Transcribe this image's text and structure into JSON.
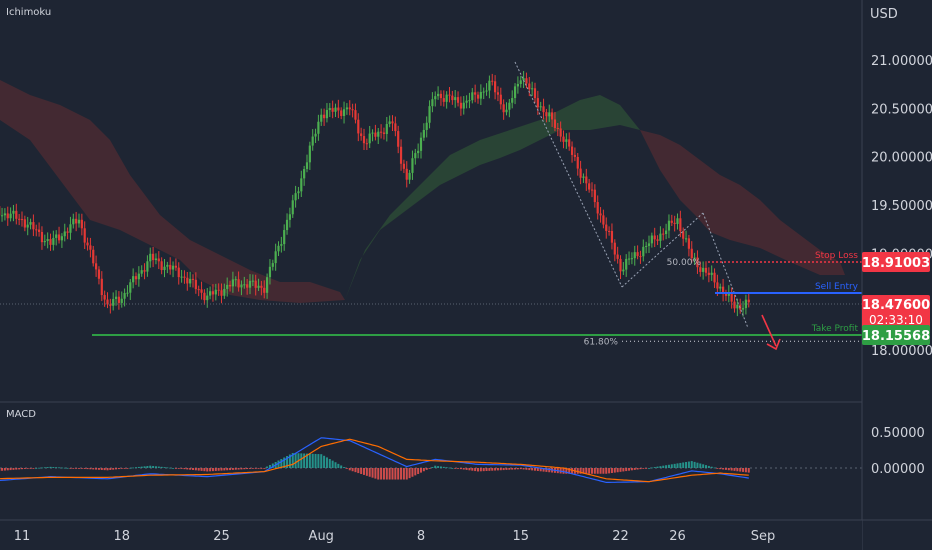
{
  "indicators": {
    "main": "Ichimoku",
    "sub": "MACD"
  },
  "currency": "USD",
  "colors": {
    "background": "#1e2533",
    "up": "#4caf50",
    "down": "#e53935",
    "stop": "#f23645",
    "entry": "#2962ff",
    "target": "#2e9e44",
    "cloud_bull": "#2c4a36",
    "cloud_bear": "#4a2a33",
    "macd": "#2962ff",
    "signal": "#ff6d00",
    "hist_up": "#26a69a",
    "hist_down": "#ef5350"
  },
  "chart_data": [
    {
      "type": "candlestick",
      "title": "",
      "y_unit": "USD",
      "ylim": [
        17.8,
        21.3
      ],
      "y_ticks": [
        {
          "value": 21.0,
          "label": "21.00000"
        },
        {
          "value": 20.5,
          "label": "20.50000"
        },
        {
          "value": 20.0,
          "label": "20.00000"
        },
        {
          "value": 19.5,
          "label": "19.50000"
        },
        {
          "value": 19.0,
          "label": "19.00000"
        },
        {
          "value": 18.0,
          "label": "18.00000"
        }
      ],
      "x_ticks": [
        {
          "label": "11",
          "date": "2022-07-11"
        },
        {
          "label": "18",
          "date": "2022-07-18"
        },
        {
          "label": "25",
          "date": "2022-07-25"
        },
        {
          "label": "Aug",
          "date": "2022-08-01"
        },
        {
          "label": "8",
          "date": "2022-08-08"
        },
        {
          "label": "15",
          "date": "2022-08-15"
        },
        {
          "label": "22",
          "date": "2022-08-22"
        },
        {
          "label": "26",
          "date": "2022-08-26"
        },
        {
          "label": "Sep",
          "date": "2022-09-01"
        }
      ],
      "price_path": [
        {
          "date": "2022-07-09",
          "price": 19.45
        },
        {
          "date": "2022-07-11",
          "price": 19.35
        },
        {
          "date": "2022-07-13",
          "price": 19.1
        },
        {
          "date": "2022-07-15",
          "price": 19.35
        },
        {
          "date": "2022-07-17",
          "price": 18.45
        },
        {
          "date": "2022-07-18",
          "price": 18.55
        },
        {
          "date": "2022-07-20",
          "price": 18.95
        },
        {
          "date": "2022-07-22",
          "price": 18.8
        },
        {
          "date": "2022-07-24",
          "price": 18.55
        },
        {
          "date": "2022-07-26",
          "price": 18.7
        },
        {
          "date": "2022-07-28",
          "price": 18.65
        },
        {
          "date": "2022-07-30",
          "price": 19.5
        },
        {
          "date": "2022-08-01",
          "price": 20.45
        },
        {
          "date": "2022-08-03",
          "price": 20.5
        },
        {
          "date": "2022-08-04",
          "price": 20.15
        },
        {
          "date": "2022-08-06",
          "price": 20.35
        },
        {
          "date": "2022-08-07",
          "price": 19.75
        },
        {
          "date": "2022-08-09",
          "price": 20.65
        },
        {
          "date": "2022-08-11",
          "price": 20.55
        },
        {
          "date": "2022-08-13",
          "price": 20.75
        },
        {
          "date": "2022-08-14",
          "price": 20.45
        },
        {
          "date": "2022-08-15",
          "price": 20.85
        },
        {
          "date": "2022-08-16",
          "price": 20.6
        },
        {
          "date": "2022-08-18",
          "price": 20.2
        },
        {
          "date": "2022-08-20",
          "price": 19.6
        },
        {
          "date": "2022-08-21",
          "price": 19.25
        },
        {
          "date": "2022-08-22",
          "price": 18.85
        },
        {
          "date": "2022-08-24",
          "price": 19.1
        },
        {
          "date": "2022-08-26",
          "price": 19.35
        },
        {
          "date": "2022-08-27",
          "price": 18.95
        },
        {
          "date": "2022-08-29",
          "price": 18.65
        },
        {
          "date": "2022-08-30",
          "price": 18.45
        },
        {
          "date": "2022-08-31",
          "price": 18.48
        }
      ],
      "levels": [
        {
          "name": "Stop Loss",
          "value": 18.91003,
          "label": "18.91003"
        },
        {
          "name": "Sell Entry",
          "value": 18.59,
          "label": ""
        },
        {
          "name": "Take Profit",
          "value": 18.15568,
          "label": "18.15568"
        }
      ],
      "current_price": {
        "value": 18.476,
        "label": "18.47600",
        "countdown": "02:33:10"
      },
      "fibonacci": [
        {
          "label": "50.00%",
          "value": 18.91003
        },
        {
          "label": "61.80%",
          "value": 18.09
        }
      ],
      "annotations": [
        "Stop Loss",
        "Sell Entry",
        "Take Profit",
        "50.00%",
        "61.80%"
      ]
    },
    {
      "type": "line",
      "title": "MACD",
      "ylim": [
        -0.2,
        0.5
      ],
      "y_ticks": [
        {
          "value": 0.5,
          "label": "0.50000"
        },
        {
          "value": 0.0,
          "label": "0.00000"
        }
      ],
      "series": [
        {
          "values": [
            {
              "date": "2022-07-09",
              "value": -0.18
            },
            {
              "date": "2022-07-13",
              "value": -0.12
            },
            {
              "date": "2022-07-17",
              "value": -0.15
            },
            {
              "date": "2022-07-20",
              "value": -0.08
            },
            {
              "date": "2022-07-24",
              "value": -0.12
            },
            {
              "date": "2022-07-28",
              "value": -0.05
            },
            {
              "date": "2022-07-30",
              "value": 0.18
            },
            {
              "date": "2022-08-01",
              "value": 0.42
            },
            {
              "date": "2022-08-03",
              "value": 0.38
            },
            {
              "date": "2022-08-05",
              "value": 0.2
            },
            {
              "date": "2022-08-07",
              "value": 0.02
            },
            {
              "date": "2022-08-09",
              "value": 0.12
            },
            {
              "date": "2022-08-12",
              "value": 0.05
            },
            {
              "date": "2022-08-15",
              "value": 0.04
            },
            {
              "date": "2022-08-18",
              "value": -0.05
            },
            {
              "date": "2022-08-21",
              "value": -0.2
            },
            {
              "date": "2022-08-24",
              "value": -0.19
            },
            {
              "date": "2022-08-27",
              "value": -0.04
            },
            {
              "date": "2022-08-29",
              "value": -0.08
            },
            {
              "date": "2022-08-31",
              "value": -0.14
            }
          ]
        },
        {
          "values": [
            {
              "date": "2022-07-09",
              "value": -0.15
            },
            {
              "date": "2022-07-13",
              "value": -0.13
            },
            {
              "date": "2022-07-17",
              "value": -0.13
            },
            {
              "date": "2022-07-20",
              "value": -0.1
            },
            {
              "date": "2022-07-24",
              "value": -0.09
            },
            {
              "date": "2022-07-28",
              "value": -0.05
            },
            {
              "date": "2022-07-30",
              "value": 0.05
            },
            {
              "date": "2022-08-01",
              "value": 0.3
            },
            {
              "date": "2022-08-03",
              "value": 0.4
            },
            {
              "date": "2022-08-05",
              "value": 0.3
            },
            {
              "date": "2022-08-07",
              "value": 0.12
            },
            {
              "date": "2022-08-09",
              "value": 0.1
            },
            {
              "date": "2022-08-12",
              "value": 0.08
            },
            {
              "date": "2022-08-15",
              "value": 0.05
            },
            {
              "date": "2022-08-18",
              "value": 0.0
            },
            {
              "date": "2022-08-21",
              "value": -0.15
            },
            {
              "date": "2022-08-24",
              "value": -0.19
            },
            {
              "date": "2022-08-27",
              "value": -0.1
            },
            {
              "date": "2022-08-29",
              "value": -0.07
            },
            {
              "date": "2022-08-31",
              "value": -0.1
            }
          ]
        }
      ]
    }
  ]
}
